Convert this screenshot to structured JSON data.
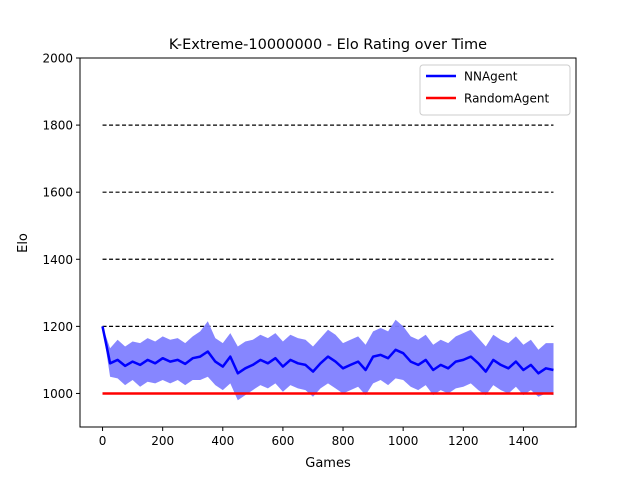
{
  "chart_data": {
    "type": "line",
    "title": "K-Extreme-10000000 - Elo Rating over Time",
    "xlabel": "Games",
    "ylabel": "Elo",
    "xlim": [
      -75,
      1575
    ],
    "ylim": [
      900,
      2000
    ],
    "xticks": [
      0,
      200,
      400,
      600,
      800,
      1000,
      1200,
      1400
    ],
    "yticks": [
      1000,
      1200,
      1400,
      1600,
      1800,
      2000
    ],
    "xtick_labels": [
      "0",
      "200",
      "400",
      "600",
      "800",
      "1000",
      "1200",
      "1400"
    ],
    "ytick_labels": [
      "1000",
      "1200",
      "1400",
      "1600",
      "1800",
      "2000"
    ],
    "reference_lines": {
      "values": [
        1200,
        1400,
        1600,
        1800
      ],
      "x_range": [
        0,
        1500
      ],
      "style": "dashed",
      "color": "#000000"
    },
    "legend_position": "upper-right",
    "series": [
      {
        "name": "NNAgent",
        "color": "#0000ff",
        "band_color": "#8080ff",
        "x": [
          0,
          25,
          50,
          75,
          100,
          125,
          150,
          175,
          200,
          225,
          250,
          275,
          300,
          325,
          350,
          375,
          400,
          425,
          450,
          475,
          500,
          525,
          550,
          575,
          600,
          625,
          650,
          675,
          700,
          725,
          750,
          775,
          800,
          825,
          850,
          875,
          900,
          925,
          950,
          975,
          1000,
          1025,
          1050,
          1075,
          1100,
          1125,
          1150,
          1175,
          1200,
          1225,
          1250,
          1275,
          1300,
          1325,
          1350,
          1375,
          1400,
          1425,
          1450,
          1475,
          1500
        ],
        "values": [
          1200,
          1090,
          1100,
          1082,
          1095,
          1085,
          1100,
          1090,
          1105,
          1095,
          1100,
          1088,
          1105,
          1110,
          1125,
          1095,
          1080,
          1110,
          1060,
          1075,
          1085,
          1100,
          1090,
          1105,
          1080,
          1100,
          1090,
          1085,
          1065,
          1090,
          1110,
          1095,
          1075,
          1085,
          1095,
          1070,
          1110,
          1115,
          1105,
          1130,
          1120,
          1095,
          1085,
          1100,
          1070,
          1085,
          1075,
          1095,
          1100,
          1110,
          1090,
          1065,
          1100,
          1085,
          1075,
          1095,
          1070,
          1085,
          1060,
          1075,
          1070
        ],
        "lower": [
          1200,
          1050,
          1045,
          1025,
          1040,
          1020,
          1035,
          1030,
          1040,
          1030,
          1040,
          1025,
          1040,
          1040,
          1050,
          1025,
          1010,
          1030,
          980,
          995,
          1010,
          1025,
          1015,
          1030,
          1005,
          1025,
          1015,
          1010,
          990,
          1015,
          1030,
          1015,
          1000,
          1010,
          1020,
          995,
          1030,
          1040,
          1025,
          1045,
          1040,
          1020,
          1010,
          1025,
          995,
          1010,
          1000,
          1015,
          1020,
          1030,
          1010,
          995,
          1025,
          1010,
          1000,
          1020,
          995,
          1010,
          990,
          1000,
          995
        ],
        "upper": [
          1200,
          1135,
          1160,
          1140,
          1155,
          1150,
          1165,
          1155,
          1170,
          1160,
          1165,
          1150,
          1170,
          1185,
          1215,
          1165,
          1150,
          1180,
          1140,
          1155,
          1160,
          1175,
          1165,
          1180,
          1155,
          1175,
          1165,
          1160,
          1140,
          1165,
          1190,
          1175,
          1150,
          1160,
          1170,
          1145,
          1185,
          1195,
          1185,
          1220,
          1200,
          1170,
          1160,
          1175,
          1145,
          1160,
          1150,
          1170,
          1180,
          1190,
          1165,
          1140,
          1175,
          1160,
          1150,
          1170,
          1145,
          1160,
          1130,
          1150,
          1150
        ]
      },
      {
        "name": "RandomAgent",
        "color": "#ff0000",
        "x": [
          0,
          1500
        ],
        "values": [
          1000,
          1000
        ]
      }
    ]
  }
}
